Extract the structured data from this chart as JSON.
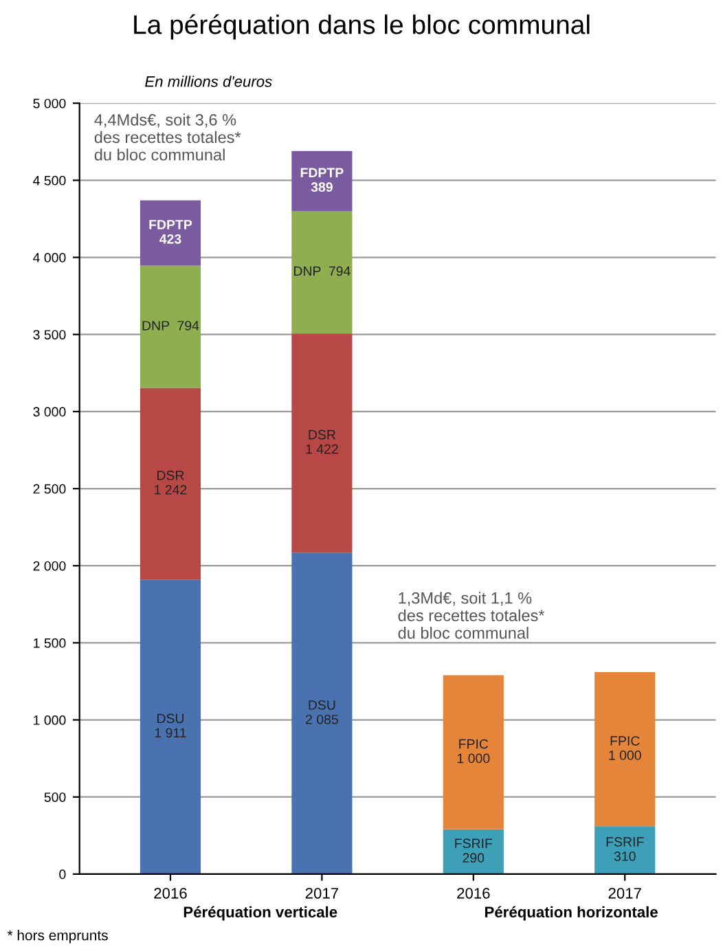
{
  "chart_data": {
    "type": "bar",
    "title": "La péréquation dans le bloc communal",
    "stacked": true,
    "categories": [
      "2016",
      "2017",
      "2016",
      "2017"
    ],
    "series": [
      {
        "name": "DSU",
        "color": "#4a72b0",
        "values": [
          1911,
          2085,
          null,
          null
        ],
        "value_labels": [
          "1 911",
          "2 085",
          null,
          null
        ]
      },
      {
        "name": "FSRIF",
        "color": "#3d9fb8",
        "values": [
          null,
          null,
          290,
          310
        ],
        "value_labels": [
          null,
          null,
          "290",
          "310"
        ]
      },
      {
        "name": "DSR",
        "color": "#b84846",
        "values": [
          1242,
          1422,
          null,
          null
        ],
        "value_labels": [
          "1 242",
          "1 422",
          null,
          null
        ]
      },
      {
        "name": "FPIC",
        "color": "#e4853a",
        "values": [
          null,
          null,
          1000,
          1000
        ],
        "value_labels": [
          null,
          null,
          "1 000",
          "1 000"
        ]
      },
      {
        "name": "DNP",
        "color": "#8fae4f",
        "values": [
          794,
          794,
          null,
          null
        ],
        "value_labels": [
          "794",
          "794",
          null,
          null
        ]
      },
      {
        "name": "FDPTP",
        "color": "#7a5ba0",
        "values": [
          423,
          389,
          null,
          null
        ],
        "value_labels": [
          "423",
          "389",
          null,
          null
        ]
      }
    ],
    "ylim": [
      0,
      5000
    ],
    "yticks": [
      0,
      500,
      {
        "value": 1000,
        "label": "1 000"
      },
      {
        "value": 1500,
        "label": "1 500"
      },
      {
        "value": 2000,
        "label": "2 000"
      },
      {
        "value": 2500,
        "label": "2 500"
      },
      {
        "value": 3000,
        "label": "3 000"
      },
      {
        "value": 3500,
        "label": "3 500"
      },
      {
        "value": 4000,
        "label": "4 000"
      },
      {
        "value": 4500,
        "label": "4 500"
      },
      {
        "value": 5000,
        "label": "5 000"
      }
    ],
    "grid": "y",
    "legend": false,
    "annotations": [
      "En millions d'euros",
      "4,4Mds€, soit 3,6 %\ndes recettes totales*\ndu bloc communal",
      "1,3Md€, soit 1,1 %\ndes recettes totales*\ndu bloc communal",
      "Péréquation verticale",
      "Péréquation horizontale",
      "* hors emprunts"
    ]
  }
}
